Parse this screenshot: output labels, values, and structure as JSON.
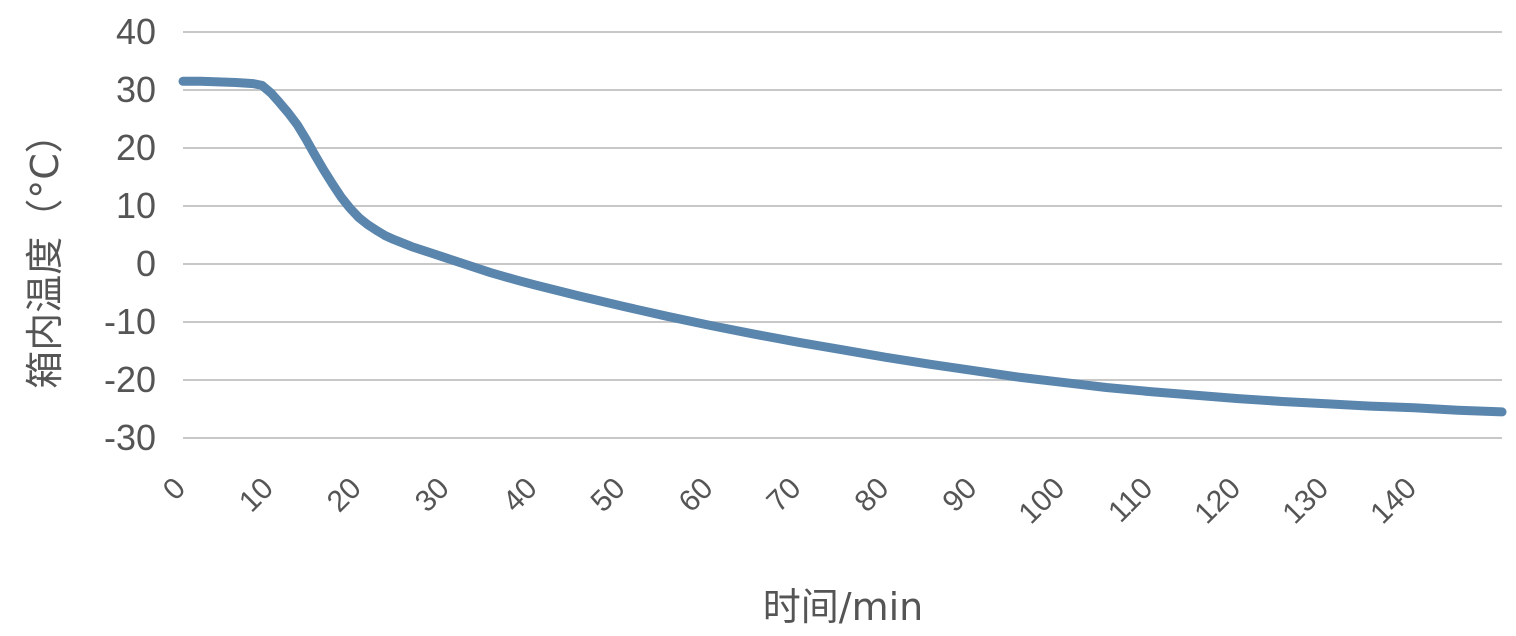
{
  "chart_data": {
    "type": "line",
    "title": "",
    "xlabel": "时间/min",
    "ylabel": "箱内温度（°C）",
    "xlim": [
      0,
      150
    ],
    "ylim": [
      -30,
      40
    ],
    "x_ticks": [
      0,
      10,
      20,
      30,
      40,
      50,
      60,
      70,
      80,
      90,
      100,
      110,
      120,
      130,
      140
    ],
    "y_ticks": [
      40,
      30,
      20,
      10,
      0,
      -10,
      -20,
      -30
    ],
    "grid": true,
    "legend": "none",
    "colors": {
      "line": "#5a85ad",
      "grid": "#c8c8c8",
      "text": "#555555"
    },
    "series": [
      {
        "x": [
          0,
          2,
          4,
          6,
          8,
          9,
          10,
          11,
          12,
          13,
          14,
          15,
          16,
          17,
          18,
          19,
          20,
          21,
          22,
          23,
          24,
          25,
          26,
          27,
          28,
          30,
          32,
          35,
          38,
          40,
          45,
          50,
          55,
          60,
          65,
          70,
          75,
          80,
          85,
          90,
          95,
          100,
          105,
          110,
          115,
          120,
          125,
          130,
          135,
          140,
          145,
          150
        ],
        "y": [
          31.5,
          31.5,
          31.4,
          31.3,
          31.1,
          30.8,
          29.5,
          27.8,
          26,
          24,
          21.5,
          18.8,
          16.2,
          13.8,
          11.5,
          9.6,
          8.0,
          6.8,
          5.8,
          4.9,
          4.2,
          3.6,
          3.0,
          2.5,
          2.0,
          1.0,
          0.0,
          -1.5,
          -2.8,
          -3.6,
          -5.5,
          -7.3,
          -9.0,
          -10.6,
          -12.1,
          -13.5,
          -14.8,
          -16.1,
          -17.3,
          -18.4,
          -19.5,
          -20.4,
          -21.3,
          -22.0,
          -22.6,
          -23.2,
          -23.7,
          -24.1,
          -24.5,
          -24.8,
          -25.2,
          -25.5
        ]
      }
    ]
  }
}
